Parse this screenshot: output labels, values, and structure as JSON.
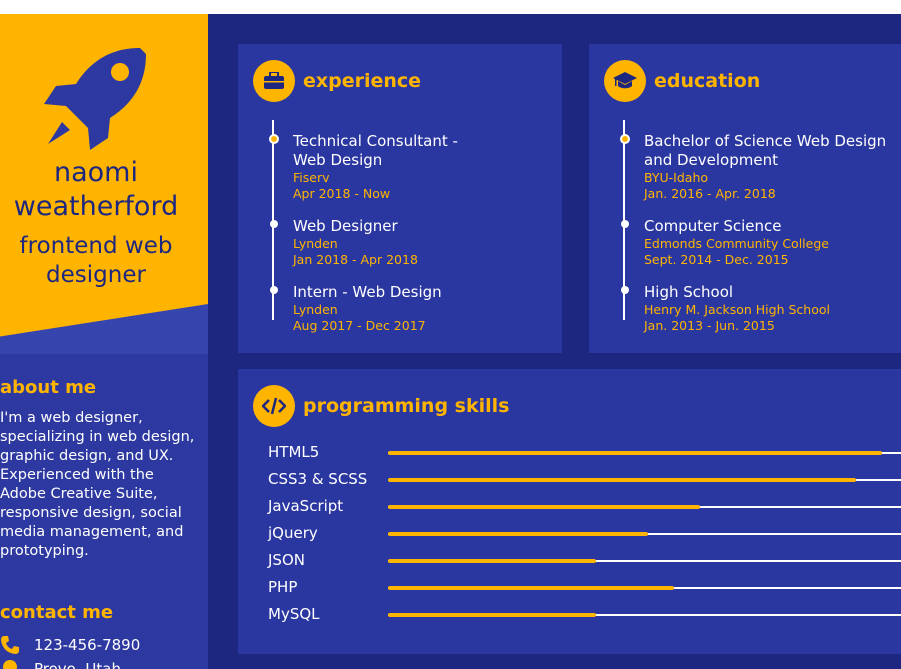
{
  "profile": {
    "first_name": "naomi",
    "last_name": "weatherford",
    "title_line1": "frontend web",
    "title_line2": "designer",
    "logo_icon": "rocket-icon"
  },
  "about": {
    "heading": "about me",
    "text": "I'm a web designer, specializing in web design, graphic design, and UX. Experienced with the Adobe Creative Suite, responsive design, social media management, and prototyping."
  },
  "contact": {
    "heading": "contact me",
    "phone": "123-456-7890",
    "location": "Provo, Utah"
  },
  "experience": {
    "heading": "experience",
    "icon": "briefcase-icon",
    "items": [
      {
        "role": "Technical Consultant - Web Design",
        "org": "Fiserv",
        "dates": "Apr 2018 - Now"
      },
      {
        "role": "Web Designer",
        "org": "Lynden",
        "dates": "Jan 2018 - Apr 2018"
      },
      {
        "role": "Intern - Web Design",
        "org": "Lynden",
        "dates": "Aug 2017 - Dec 2017"
      }
    ]
  },
  "education": {
    "heading": "education",
    "icon": "graduation-cap-icon",
    "items": [
      {
        "role": "Bachelor of Science Web Design and Development",
        "org": "BYU-Idaho",
        "dates": "Jan. 2016 - Apr. 2018"
      },
      {
        "role": "Computer Science",
        "org": "Edmonds Community College",
        "dates": "Sept. 2014 - Dec. 2015"
      },
      {
        "role": "High School",
        "org": "Henry M. Jackson High School",
        "dates": "Jan. 2013 - Jun. 2015"
      }
    ]
  },
  "skills": {
    "heading": "programming skills",
    "icon": "code-icon",
    "items": [
      {
        "name": "HTML5",
        "level": 0.95
      },
      {
        "name": "CSS3 & SCSS",
        "level": 0.9
      },
      {
        "name": "JavaScript",
        "level": 0.6
      },
      {
        "name": "jQuery",
        "level": 0.5
      },
      {
        "name": "JSON",
        "level": 0.4
      },
      {
        "name": "PHP",
        "level": 0.55
      },
      {
        "name": "MySQL",
        "level": 0.4
      }
    ]
  },
  "colors": {
    "accent": "#ffb400",
    "background": "#1e2780",
    "card": "#2b37a0"
  }
}
